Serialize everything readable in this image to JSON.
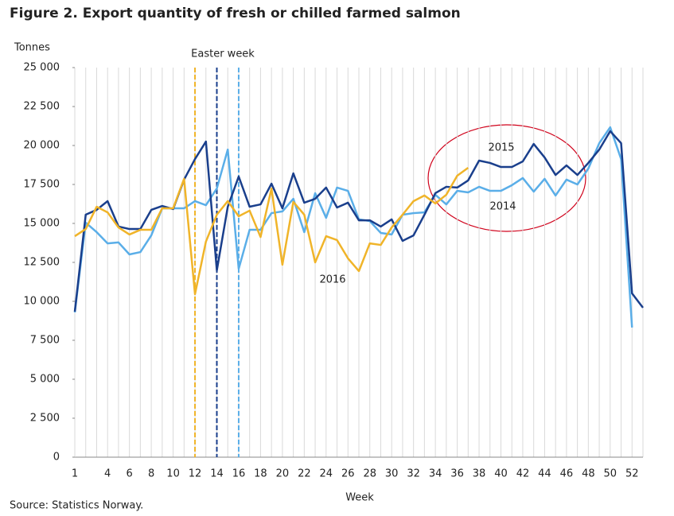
{
  "chart_data": {
    "type": "line",
    "title": "Figure 2. Export quantity of fresh or chilled farmed salmon",
    "y_label": "Tonnes",
    "x_label": "Week",
    "source": "Source: Statistics Norway.",
    "annotation": "Easter week",
    "grid": "x",
    "x": [
      1,
      2,
      3,
      4,
      5,
      6,
      7,
      8,
      9,
      10,
      11,
      12,
      13,
      14,
      15,
      16,
      17,
      18,
      19,
      20,
      21,
      22,
      23,
      24,
      25,
      26,
      27,
      28,
      29,
      30,
      31,
      32,
      33,
      34,
      35,
      36,
      37,
      38,
      39,
      40,
      41,
      42,
      43,
      44,
      45,
      46,
      47,
      48,
      49,
      50,
      51,
      52,
      53
    ],
    "xlim": [
      1,
      53
    ],
    "xticks": [
      1,
      4,
      6,
      8,
      10,
      12,
      14,
      16,
      18,
      20,
      22,
      24,
      26,
      28,
      30,
      32,
      34,
      36,
      38,
      40,
      42,
      44,
      46,
      48,
      50,
      52
    ],
    "ylim": [
      0,
      25000
    ],
    "yticks": [
      0,
      {
        "value": 2500,
        "label": "2 500"
      },
      {
        "value": 5000,
        "label": "5 000"
      },
      {
        "value": 7500,
        "label": "7 500"
      },
      {
        "value": 10000,
        "label": "10 000"
      },
      {
        "value": 12500,
        "label": "12 500"
      },
      {
        "value": 15000,
        "label": "15 000"
      },
      {
        "value": 17500,
        "label": "17 500"
      },
      {
        "value": 20000,
        "label": "20 000"
      },
      {
        "value": 22500,
        "label": "22 500"
      },
      {
        "value": 25000,
        "label": "25 000"
      }
    ],
    "easter_weeks": [
      {
        "x": 12,
        "color": "#f0b429"
      },
      {
        "x": 14,
        "color": "#1a3f8c"
      },
      {
        "x": 16,
        "color": "#5aaee8"
      }
    ],
    "series": [
      {
        "name": "2014",
        "color": "#5aaee8",
        "values": [
          9290,
          15050,
          14440,
          13720,
          13780,
          13010,
          13160,
          14230,
          15970,
          15970,
          15970,
          16430,
          16170,
          17240,
          19740,
          12090,
          14590,
          14590,
          15660,
          15770,
          16580,
          14440,
          16940,
          15360,
          17300,
          17090,
          15260,
          15150,
          14390,
          14290,
          15560,
          15660,
          15710,
          16840,
          16220,
          17090,
          16990,
          17350,
          17090,
          17090,
          17450,
          17910,
          17040,
          17860,
          16790,
          17810,
          17500,
          18520,
          20150,
          21170,
          19130,
          8320,
          null
        ]
      },
      {
        "name": "2015",
        "color": "#1a3f8c",
        "values": [
          9340,
          15560,
          15870,
          16430,
          14800,
          14640,
          14640,
          15870,
          16120,
          15920,
          17810,
          19130,
          20250,
          11990,
          16070,
          18010,
          16070,
          16220,
          17550,
          15970,
          18210,
          16330,
          16580,
          17300,
          16020,
          16330,
          15200,
          15200,
          14800,
          15260,
          13880,
          14230,
          15560,
          16940,
          17350,
          17300,
          17760,
          19030,
          18880,
          18620,
          18620,
          18980,
          20100,
          19230,
          18110,
          18720,
          18110,
          18880,
          19740,
          20920,
          20150,
          10510,
          9590
        ]
      },
      {
        "name": "2016",
        "color": "#f0b429",
        "values": [
          14180,
          14640,
          16070,
          15710,
          14740,
          14290,
          14590,
          14590,
          15970,
          15970,
          17860,
          10460,
          13830,
          15560,
          16430,
          15460,
          15820,
          14130,
          17240,
          12350,
          16380,
          15560,
          12500,
          14180,
          13930,
          12760,
          11940,
          13720,
          13620,
          14740,
          15560,
          16430,
          16790,
          16280,
          16840,
          18060,
          18570,
          null,
          null,
          null,
          null,
          null,
          null,
          null,
          null,
          null,
          null,
          null,
          null,
          null,
          null,
          null,
          null
        ]
      }
    ]
  }
}
